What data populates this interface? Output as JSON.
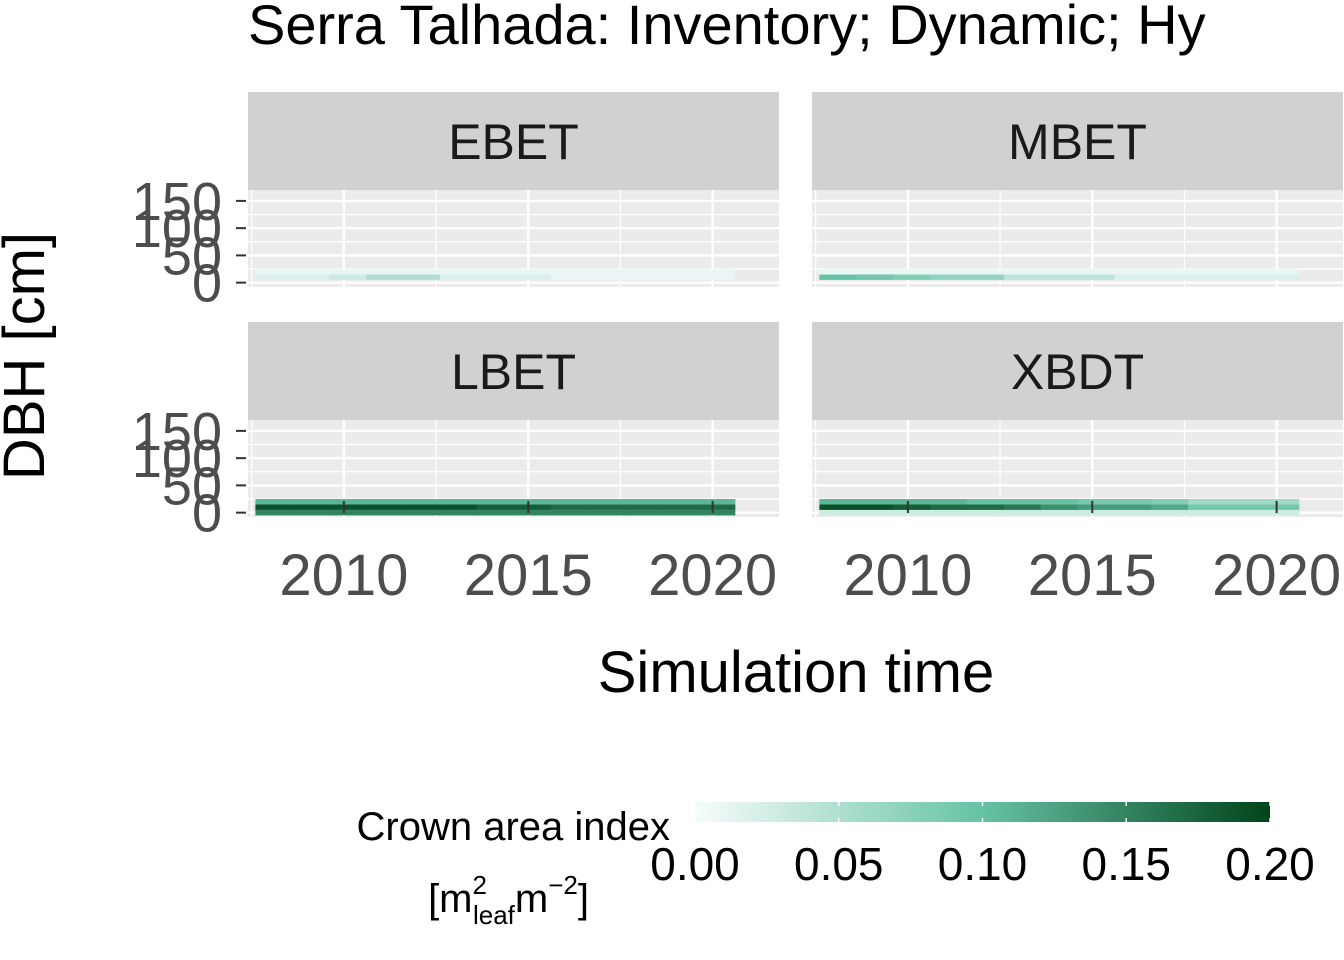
{
  "chart_data": {
    "type": "heatmap",
    "title": "Serra Talhada: Inventory; Dynamic; Hy",
    "xlabel": "Simulation time",
    "ylabel": "DBH [cm]",
    "x_ticks": [
      2010,
      2015,
      2020
    ],
    "y_ticks": [
      0,
      50,
      100,
      150
    ],
    "xlim": [
      2007.4,
      2021.8
    ],
    "ylim": [
      -8,
      170
    ],
    "grid": true,
    "legend": {
      "title_line1": "Crown area index",
      "title_line2_prefix": "[m",
      "title_line2_sup1": "2",
      "title_line2_sub": "leaf",
      "title_line2_mid": "m",
      "title_line2_sup2": "−2",
      "title_line2_suffix": "]",
      "ticks": [
        "0.00",
        "0.05",
        "0.10",
        "0.15",
        "0.20"
      ],
      "range": [
        0,
        0.2
      ],
      "placement": "bottom",
      "low_color": "#f7fcfd",
      "mid_color": "#66c2a4",
      "high_color": "#00441b"
    },
    "bin_width_years": 1,
    "x_start": 2008,
    "panels": [
      {
        "name": "EBET",
        "rows": [
          {
            "y": 10,
            "values": [
              0.02,
              0.02,
              0.03,
              0.05,
              0.05,
              0.02,
              0.02,
              0.02,
              0.01,
              0.01,
              0.01,
              0.01,
              0.01
            ]
          },
          {
            "y": 20,
            "values": [
              0.01,
              0.01,
              0.01,
              0.01,
              0.01,
              0.01,
              0.01,
              0.01,
              0.01,
              0.01,
              0.01,
              0.01,
              0.01
            ]
          }
        ]
      },
      {
        "name": "MBET",
        "rows": [
          {
            "y": 10,
            "values": [
              0.1,
              0.09,
              0.08,
              0.07,
              0.07,
              0.04,
              0.04,
              0.04,
              0.02,
              0.02,
              0.02,
              0.02,
              0.02
            ]
          },
          {
            "y": 20,
            "values": [
              0.01,
              0.01,
              0.01,
              0.01,
              0.01,
              0.01,
              0.01,
              0.01,
              0.01,
              0.01,
              0.01,
              0.01,
              0.01
            ]
          }
        ]
      },
      {
        "name": "LBET",
        "rows": [
          {
            "y": 0,
            "values": [
              0.15,
              0.15,
              0.15,
              0.15,
              0.15,
              0.15,
              0.15,
              0.15,
              0.15,
              0.15,
              0.15,
              0.15,
              0.15
            ]
          },
          {
            "y": 10,
            "values": [
              0.19,
              0.19,
              0.19,
              0.19,
              0.19,
              0.19,
              0.18,
              0.18,
              0.17,
              0.17,
              0.17,
              0.17,
              0.17
            ]
          },
          {
            "y": 20,
            "values": [
              0.11,
              0.11,
              0.11,
              0.11,
              0.11,
              0.11,
              0.11,
              0.11,
              0.11,
              0.11,
              0.11,
              0.11,
              0.11
            ]
          }
        ]
      },
      {
        "name": "XBDT",
        "rows": [
          {
            "y": 0,
            "values": [
              0.03,
              0.03,
              0.03,
              0.03,
              0.03,
              0.03,
              0.03,
              0.03,
              0.03,
              0.03,
              0.03,
              0.03,
              0.03
            ]
          },
          {
            "y": 10,
            "values": [
              0.19,
              0.19,
              0.18,
              0.17,
              0.17,
              0.16,
              0.14,
              0.13,
              0.13,
              0.12,
              0.09,
              0.09,
              0.09
            ]
          },
          {
            "y": 20,
            "values": [
              0.11,
              0.11,
              0.11,
              0.11,
              0.1,
              0.1,
              0.1,
              0.09,
              0.09,
              0.08,
              0.06,
              0.06,
              0.06
            ]
          }
        ]
      }
    ]
  }
}
